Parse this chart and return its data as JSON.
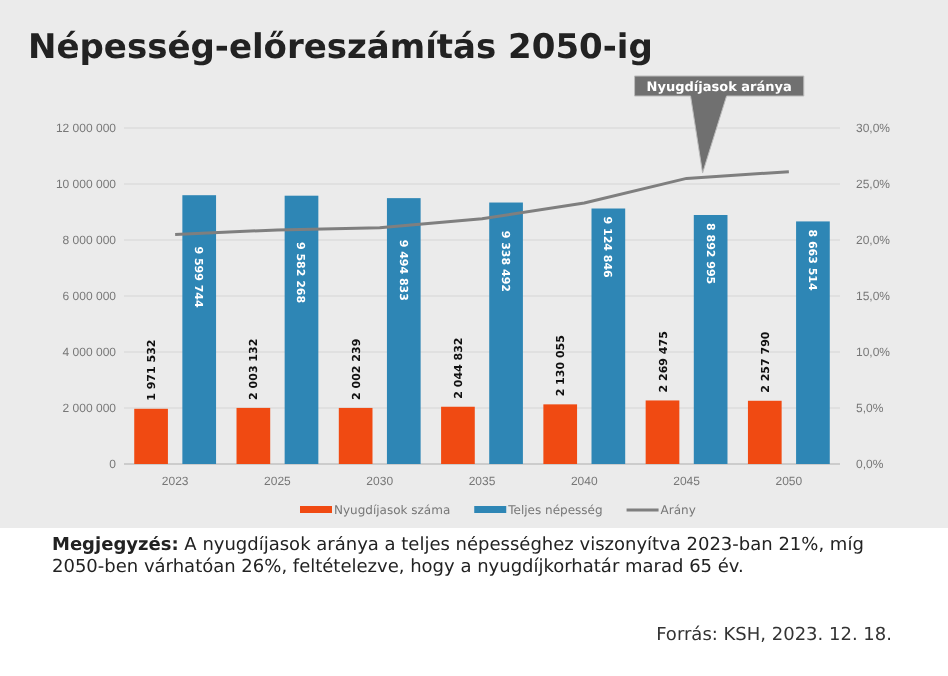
{
  "chart_data": {
    "type": "bar",
    "title": "Népesség-előreszámítás  2050-ig",
    "categories": [
      "2023",
      "2025",
      "2030",
      "2035",
      "2040",
      "2045",
      "2050"
    ],
    "series": [
      {
        "name": "Nyugdíjasok száma",
        "color": "#f04a12",
        "values": [
          1971532,
          2003132,
          2002239,
          2044832,
          2130055,
          2269475,
          2257790
        ],
        "value_labels": [
          "1 971 532",
          "2 003 132",
          "2 002 239",
          "2 044 832",
          "2 130 055",
          "2 269 475",
          "2 257 790"
        ]
      },
      {
        "name": "Teljes népesség",
        "color": "#2e86b5",
        "values": [
          9599744,
          9582268,
          9494833,
          9338492,
          9124846,
          8892995,
          8663514
        ],
        "value_labels": [
          "9 599 744",
          "9 582 268",
          "9 494 833",
          "9 338 492",
          "9 124 846",
          "8 892 995",
          "8 663 514"
        ]
      },
      {
        "name": "Arány",
        "type": "line",
        "axis": "y2",
        "color": "#7f7f7f",
        "values": [
          20.5,
          20.9,
          21.1,
          21.9,
          23.3,
          25.5,
          26.1
        ]
      }
    ],
    "ylim": [
      0,
      12000000
    ],
    "yticks": [
      {
        "value": 0,
        "label": "0"
      },
      {
        "value": 2000000,
        "label": "2 000 000"
      },
      {
        "value": 4000000,
        "label": "4 000 000"
      },
      {
        "value": 6000000,
        "label": "6 000 000"
      },
      {
        "value": 8000000,
        "label": "8 000 000"
      },
      {
        "value": 10000000,
        "label": "10 000 000"
      },
      {
        "value": 12000000,
        "label": "12 000 000"
      }
    ],
    "y2lim": [
      0,
      30
    ],
    "y2ticks": [
      {
        "value": 0,
        "label": "0,0%"
      },
      {
        "value": 5,
        "label": "5,0%"
      },
      {
        "value": 10,
        "label": "10,0%"
      },
      {
        "value": 15,
        "label": "15,0%"
      },
      {
        "value": 20,
        "label": "20,0%"
      },
      {
        "value": 25,
        "label": "25,0%"
      },
      {
        "value": 30,
        "label": "30,0%"
      }
    ],
    "grid": "y",
    "legend": "bottom",
    "annotations": [
      "Nyugdíjasok  aránya",
      "Megjegyzés: A nyugdíjasok aránya a teljes népességhez viszonyítva 2023-ban 21%, míg 2050-ben várhatóan 26%, feltételezve, hogy a nyugdíjkorhatár marad 65 év.",
      "Forrás: KSH, 2023. 12. 18."
    ]
  }
}
